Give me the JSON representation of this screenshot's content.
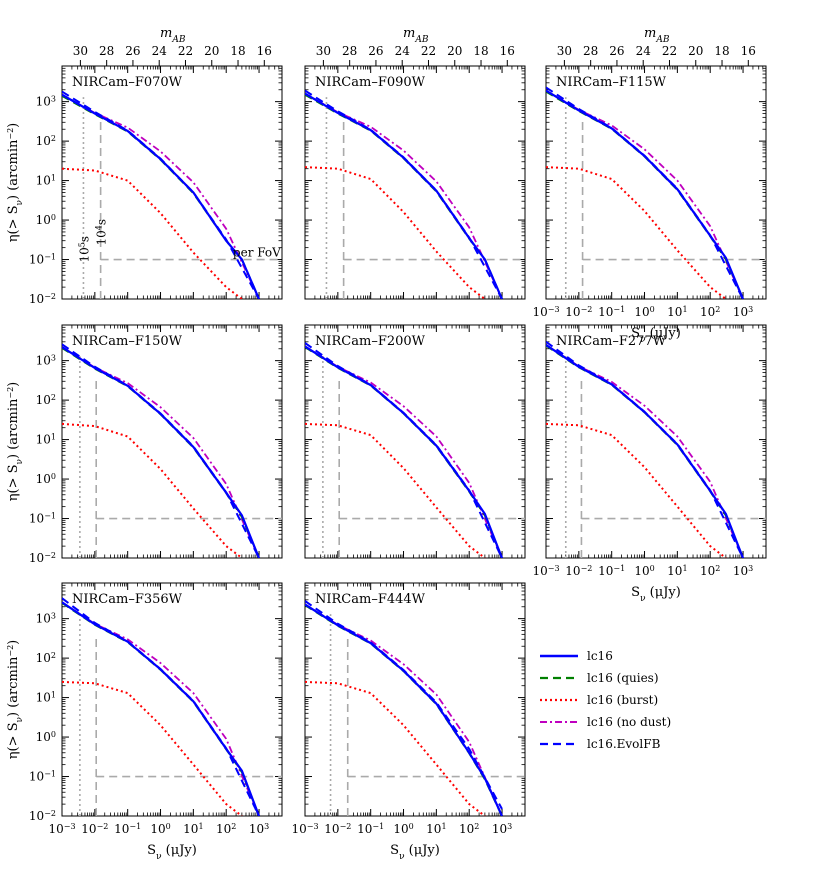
{
  "figure": {
    "top_axis_label": "m_AB",
    "y_axis_label": "η(> S_ν) (arcmin⁻²)",
    "x_axis_label": "S_ν (μJy)",
    "annotations": {
      "per_fov": "per FoV",
      "t_1e5": "10⁵s",
      "t_1e4": "10⁴s"
    }
  },
  "legend": {
    "placement": "right, beside bottom-row panels",
    "entries": [
      {
        "label": "lc16",
        "color": "#0000ff",
        "style": "solid"
      },
      {
        "label": "lc16 (quies)",
        "color": "#008000",
        "style": "dashed"
      },
      {
        "label": "lc16 (burst)",
        "color": "#ff0000",
        "style": "dotted"
      },
      {
        "label": "lc16 (no dust)",
        "color": "#bf00bf",
        "style": "dashdot"
      },
      {
        "label": "lc16.EvolFB",
        "color": "#0000ff",
        "style": "dashed"
      }
    ]
  },
  "chart_data": [
    {
      "type": "line",
      "title": "NIRCam–F070W",
      "xscale": "log",
      "yscale": "log",
      "xlim": [
        0.001,
        5000
      ],
      "ylim": [
        0.01,
        8000
      ],
      "top_axis": "m_AB",
      "top_ticks": [
        "30",
        "28",
        "26",
        "24",
        "22",
        "20",
        "18",
        "16"
      ],
      "x_tick_labels": [],
      "y_tick_labels": [
        "10³",
        "10²",
        "10¹",
        "10⁰",
        "10⁻¹",
        "10⁻²"
      ],
      "limit_1e5s": 0.0045,
      "limit_1e4s": 0.015,
      "per_fov_level": 0.1,
      "series": [
        {
          "name": "lc16",
          "x": [
            0.001,
            0.01,
            0.1,
            1,
            10,
            100,
            300,
            1000
          ],
          "y": [
            1500,
            500,
            180,
            35,
            5,
            0.3,
            0.1,
            0.01
          ]
        },
        {
          "name": "lc16 (quies)",
          "x": [
            0.001,
            0.01,
            0.1,
            1,
            10,
            100,
            300,
            1000
          ],
          "y": [
            1400,
            480,
            175,
            34,
            4.8,
            0.3,
            0.1,
            0.01
          ]
        },
        {
          "name": "lc16 (burst)",
          "x": [
            0.001,
            0.01,
            0.1,
            1,
            10,
            100,
            300
          ],
          "y": [
            20,
            18,
            10,
            1.5,
            0.15,
            0.02,
            0.01
          ]
        },
        {
          "name": "lc16 (no dust)",
          "x": [
            0.001,
            0.01,
            0.1,
            1,
            10,
            100,
            1000
          ],
          "y": [
            1500,
            520,
            220,
            55,
            9,
            0.6,
            0.01
          ]
        },
        {
          "name": "lc16.EvolFB",
          "x": [
            0.001,
            0.01,
            0.1,
            1,
            10,
            100,
            1000
          ],
          "y": [
            1800,
            550,
            185,
            36,
            5,
            0.32,
            0.01
          ]
        }
      ]
    },
    {
      "type": "line",
      "title": "NIRCam–F090W",
      "xscale": "log",
      "yscale": "log",
      "xlim": [
        0.001,
        5000
      ],
      "ylim": [
        0.01,
        8000
      ],
      "top_axis": "m_AB",
      "top_ticks": [
        "30",
        "28",
        "26",
        "24",
        "22",
        "20",
        "18",
        "16"
      ],
      "x_tick_labels": [],
      "y_tick_labels": [],
      "limit_1e5s": 0.0045,
      "limit_1e4s": 0.015,
      "per_fov_level": 0.1,
      "series": [
        {
          "name": "lc16",
          "x": [
            0.001,
            0.01,
            0.1,
            1,
            10,
            100,
            300,
            1000
          ],
          "y": [
            1600,
            520,
            190,
            38,
            5.5,
            0.35,
            0.1,
            0.01
          ]
        },
        {
          "name": "lc16 (quies)",
          "x": [
            0.001,
            0.01,
            0.1,
            1,
            10,
            100,
            300,
            1000
          ],
          "y": [
            1500,
            500,
            185,
            37,
            5.3,
            0.34,
            0.1,
            0.01
          ]
        },
        {
          "name": "lc16 (burst)",
          "x": [
            0.001,
            0.01,
            0.1,
            1,
            10,
            100,
            300
          ],
          "y": [
            22,
            20,
            11,
            1.6,
            0.16,
            0.02,
            0.01
          ]
        },
        {
          "name": "lc16 (no dust)",
          "x": [
            0.001,
            0.01,
            0.1,
            1,
            10,
            100,
            1000
          ],
          "y": [
            1600,
            540,
            230,
            58,
            9.5,
            0.65,
            0.01
          ]
        },
        {
          "name": "lc16.EvolFB",
          "x": [
            0.001,
            0.01,
            0.1,
            1,
            10,
            100,
            1000
          ],
          "y": [
            1900,
            570,
            195,
            39,
            5.6,
            0.36,
            0.01
          ]
        }
      ]
    },
    {
      "type": "line",
      "title": "NIRCam–F115W",
      "xscale": "log",
      "yscale": "log",
      "xlim": [
        0.001,
        5000
      ],
      "ylim": [
        0.01,
        8000
      ],
      "top_axis": "m_AB",
      "top_ticks": [
        "30",
        "28",
        "26",
        "24",
        "22",
        "20",
        "18",
        "16"
      ],
      "x_tick_labels": [
        "10⁻³",
        "10⁻²",
        "10⁻¹",
        "10⁰",
        "10¹",
        "10²",
        "10³"
      ],
      "y_tick_labels": [],
      "xlabel": "S_ν (μJy)",
      "limit_1e5s": 0.004,
      "limit_1e4s": 0.013,
      "per_fov_level": 0.1,
      "series": [
        {
          "name": "lc16",
          "x": [
            0.001,
            0.01,
            0.1,
            1,
            10,
            100,
            300,
            1000
          ],
          "y": [
            1900,
            600,
            210,
            42,
            6,
            0.4,
            0.11,
            0.01
          ]
        },
        {
          "name": "lc16 (quies)",
          "x": [
            0.001,
            0.01,
            0.1,
            1,
            10,
            100,
            300,
            1000
          ],
          "y": [
            1800,
            580,
            205,
            41,
            5.8,
            0.39,
            0.1,
            0.01
          ]
        },
        {
          "name": "lc16 (burst)",
          "x": [
            0.001,
            0.01,
            0.1,
            1,
            10,
            100,
            300
          ],
          "y": [
            22,
            20,
            11,
            1.7,
            0.17,
            0.02,
            0.01
          ]
        },
        {
          "name": "lc16 (no dust)",
          "x": [
            0.001,
            0.01,
            0.1,
            1,
            10,
            100,
            1000
          ],
          "y": [
            1900,
            620,
            250,
            62,
            10,
            0.7,
            0.01
          ]
        },
        {
          "name": "lc16.EvolFB",
          "x": [
            0.001,
            0.01,
            0.1,
            1,
            10,
            100,
            1000
          ],
          "y": [
            2300,
            650,
            215,
            43,
            6.2,
            0.41,
            0.01
          ]
        }
      ]
    },
    {
      "type": "line",
      "title": "NIRCam–F150W",
      "xscale": "log",
      "yscale": "log",
      "xlim": [
        0.001,
        5000
      ],
      "ylim": [
        0.01,
        8000
      ],
      "x_tick_labels": [],
      "y_tick_labels": [
        "10³",
        "10²",
        "10¹",
        "10⁰",
        "10⁻¹",
        "10⁻²"
      ],
      "limit_1e5s": 0.0035,
      "limit_1e4s": 0.011,
      "per_fov_level": 0.1,
      "series": [
        {
          "name": "lc16",
          "x": [
            0.001,
            0.01,
            0.1,
            1,
            10,
            100,
            300,
            1000
          ],
          "y": [
            2200,
            650,
            230,
            45,
            6.5,
            0.45,
            0.12,
            0.01
          ]
        },
        {
          "name": "lc16 (quies)",
          "x": [
            0.001,
            0.01,
            0.1,
            1,
            10,
            100,
            300,
            1000
          ],
          "y": [
            2100,
            630,
            225,
            44,
            6.3,
            0.44,
            0.11,
            0.01
          ]
        },
        {
          "name": "lc16 (burst)",
          "x": [
            0.001,
            0.01,
            0.1,
            1,
            10,
            100,
            300
          ],
          "y": [
            25,
            22,
            12,
            1.8,
            0.18,
            0.02,
            0.01
          ]
        },
        {
          "name": "lc16 (no dust)",
          "x": [
            0.001,
            0.01,
            0.1,
            1,
            10,
            100,
            1000
          ],
          "y": [
            2200,
            670,
            270,
            66,
            11,
            0.75,
            0.01
          ]
        },
        {
          "name": "lc16.EvolFB",
          "x": [
            0.001,
            0.01,
            0.1,
            1,
            10,
            100,
            1000
          ],
          "y": [
            2600,
            700,
            235,
            46,
            6.7,
            0.46,
            0.01
          ]
        }
      ]
    },
    {
      "type": "line",
      "title": "NIRCam–F200W",
      "xscale": "log",
      "yscale": "log",
      "xlim": [
        0.001,
        5000
      ],
      "ylim": [
        0.01,
        8000
      ],
      "x_tick_labels": [],
      "y_tick_labels": [],
      "limit_1e5s": 0.0035,
      "limit_1e4s": 0.011,
      "per_fov_level": 0.1,
      "series": [
        {
          "name": "lc16",
          "x": [
            0.001,
            0.01,
            0.1,
            1,
            10,
            100,
            300,
            1000
          ],
          "y": [
            2300,
            680,
            240,
            47,
            7,
            0.5,
            0.13,
            0.01
          ]
        },
        {
          "name": "lc16 (quies)",
          "x": [
            0.001,
            0.01,
            0.1,
            1,
            10,
            100,
            300,
            1000
          ],
          "y": [
            2200,
            660,
            235,
            46,
            6.8,
            0.48,
            0.12,
            0.01
          ]
        },
        {
          "name": "lc16 (burst)",
          "x": [
            0.001,
            0.01,
            0.1,
            1,
            10,
            100,
            300
          ],
          "y": [
            25,
            23,
            13,
            1.9,
            0.19,
            0.02,
            0.01
          ]
        },
        {
          "name": "lc16 (no dust)",
          "x": [
            0.001,
            0.01,
            0.1,
            1,
            10,
            100,
            1000
          ],
          "y": [
            2300,
            700,
            280,
            70,
            12,
            0.8,
            0.01
          ]
        },
        {
          "name": "lc16.EvolFB",
          "x": [
            0.001,
            0.01,
            0.1,
            1,
            10,
            100,
            1000
          ],
          "y": [
            2800,
            730,
            245,
            48,
            7.2,
            0.52,
            0.01
          ]
        }
      ]
    },
    {
      "type": "line",
      "title": "NIRCam–F277W",
      "xscale": "log",
      "yscale": "log",
      "xlim": [
        0.001,
        5000
      ],
      "ylim": [
        0.01,
        8000
      ],
      "x_tick_labels": [
        "10⁻³",
        "10⁻²",
        "10⁻¹",
        "10⁰",
        "10¹",
        "10²",
        "10³"
      ],
      "y_tick_labels": [],
      "xlabel": "S_ν (μJy)",
      "limit_1e5s": 0.004,
      "limit_1e4s": 0.012,
      "per_fov_level": 0.1,
      "series": [
        {
          "name": "lc16",
          "x": [
            0.001,
            0.01,
            0.1,
            1,
            10,
            100,
            300,
            1000
          ],
          "y": [
            2500,
            700,
            250,
            50,
            7.5,
            0.5,
            0.13,
            0.01
          ]
        },
        {
          "name": "lc16 (quies)",
          "x": [
            0.001,
            0.01,
            0.1,
            1,
            10,
            100,
            300,
            1000
          ],
          "y": [
            2400,
            680,
            245,
            49,
            7.3,
            0.49,
            0.12,
            0.01
          ]
        },
        {
          "name": "lc16 (burst)",
          "x": [
            0.001,
            0.01,
            0.1,
            1,
            10,
            100,
            300
          ],
          "y": [
            25,
            23,
            13,
            2,
            0.2,
            0.02,
            0.01
          ]
        },
        {
          "name": "lc16 (no dust)",
          "x": [
            0.001,
            0.01,
            0.1,
            1,
            10,
            100,
            1000
          ],
          "y": [
            2500,
            720,
            290,
            72,
            12,
            0.85,
            0.01
          ]
        },
        {
          "name": "lc16.EvolFB",
          "x": [
            0.001,
            0.01,
            0.1,
            1,
            10,
            100,
            1000
          ],
          "y": [
            3000,
            760,
            255,
            51,
            7.7,
            0.52,
            0.01
          ]
        }
      ]
    },
    {
      "type": "line",
      "title": "NIRCam–F356W",
      "xscale": "log",
      "yscale": "log",
      "xlim": [
        0.001,
        5000
      ],
      "ylim": [
        0.01,
        8000
      ],
      "x_tick_labels": [
        "10⁻³",
        "10⁻²",
        "10⁻¹",
        "10⁰",
        "10¹",
        "10²",
        "10³"
      ],
      "y_tick_labels": [
        "10³",
        "10²",
        "10¹",
        "10⁰",
        "10⁻¹",
        "10⁻²"
      ],
      "xlabel": "S_ν (μJy)",
      "limit_1e5s": 0.0035,
      "limit_1e4s": 0.011,
      "per_fov_level": 0.1,
      "series": [
        {
          "name": "lc16",
          "x": [
            0.001,
            0.01,
            0.1,
            1,
            10,
            100,
            300,
            1000
          ],
          "y": [
            2600,
            720,
            260,
            52,
            8,
            0.5,
            0.14,
            0.01
          ]
        },
        {
          "name": "lc16 (quies)",
          "x": [
            0.001,
            0.01,
            0.1,
            1,
            10,
            100,
            300,
            1000
          ],
          "y": [
            2500,
            700,
            255,
            51,
            7.8,
            0.49,
            0.13,
            0.01
          ]
        },
        {
          "name": "lc16 (burst)",
          "x": [
            0.001,
            0.01,
            0.1,
            1,
            10,
            100,
            300
          ],
          "y": [
            25,
            23,
            13,
            2,
            0.2,
            0.02,
            0.01
          ]
        },
        {
          "name": "lc16 (no dust)",
          "x": [
            0.001,
            0.01,
            0.1,
            1,
            10,
            100,
            1000
          ],
          "y": [
            2600,
            740,
            300,
            75,
            13,
            0.9,
            0.01
          ]
        },
        {
          "name": "lc16.EvolFB",
          "x": [
            0.001,
            0.01,
            0.1,
            1,
            10,
            100,
            1000
          ],
          "y": [
            3300,
            780,
            265,
            53,
            8.2,
            0.52,
            0.01
          ]
        }
      ]
    },
    {
      "type": "line",
      "title": "NIRCam–F444W",
      "xscale": "log",
      "yscale": "log",
      "xlim": [
        0.001,
        5000
      ],
      "ylim": [
        0.01,
        8000
      ],
      "x_tick_labels": [
        "10⁻³",
        "10⁻²",
        "10⁻¹",
        "10⁰",
        "10¹",
        "10²",
        "10³"
      ],
      "y_tick_labels": [],
      "xlabel": "S_ν (μJy)",
      "limit_1e5s": 0.006,
      "limit_1e4s": 0.02,
      "per_fov_level": 0.1,
      "series": [
        {
          "name": "lc16",
          "x": [
            0.001,
            0.01,
            0.1,
            1,
            10,
            100,
            300,
            1000
          ],
          "y": [
            2300,
            680,
            240,
            48,
            7,
            0.4,
            0.09,
            0.01
          ]
        },
        {
          "name": "lc16 (quies)",
          "x": [
            0.001,
            0.01,
            0.1,
            1,
            10,
            100,
            300,
            1000
          ],
          "y": [
            2200,
            660,
            235,
            47,
            6.8,
            0.39,
            0.085,
            0.01
          ]
        },
        {
          "name": "lc16 (burst)",
          "x": [
            0.001,
            0.01,
            0.1,
            1,
            10,
            100,
            300
          ],
          "y": [
            25,
            23,
            13,
            2,
            0.2,
            0.02,
            0.01
          ]
        },
        {
          "name": "lc16 (no dust)",
          "x": [
            0.001,
            0.01,
            0.1,
            1,
            10,
            100,
            1000
          ],
          "y": [
            2300,
            700,
            280,
            70,
            12,
            0.75,
            0.01
          ]
        },
        {
          "name": "lc16.EvolFB",
          "x": [
            0.001,
            0.01,
            0.1,
            1,
            10,
            100,
            1000
          ],
          "y": [
            2800,
            740,
            250,
            50,
            7.5,
            0.5,
            0.015
          ]
        }
      ]
    }
  ]
}
